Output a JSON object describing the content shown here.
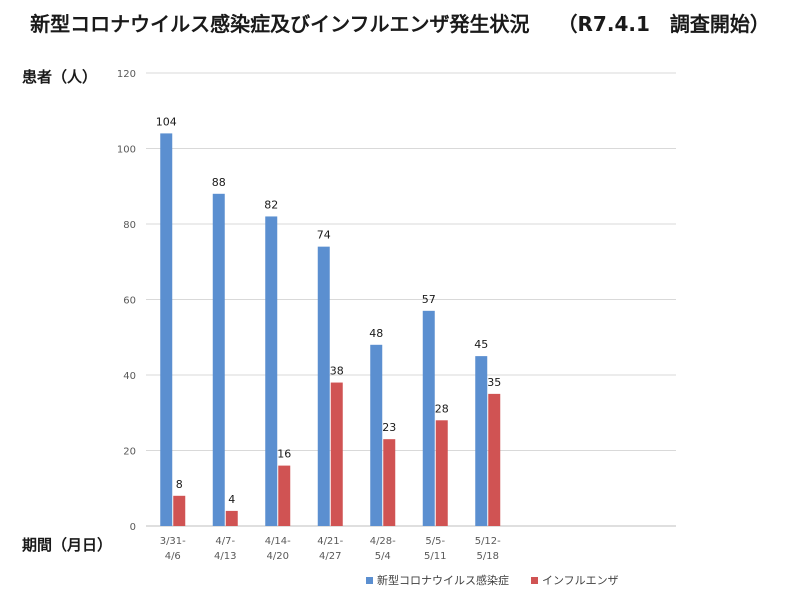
{
  "title": {
    "main": "新型コロナウイルス感染症及びインフルエンザ発生状況",
    "survey": "（R7.4.1　調査開始）"
  },
  "colors": {
    "covid": "#5b8fd0",
    "flu": "#d05353",
    "grid": "#d9d9d9",
    "axis": "#bfbfbf"
  },
  "chart_data": {
    "type": "bar",
    "title": "新型コロナウイルス感染症及びインフルエンザ発生状況",
    "ylabel": "患者（人）",
    "xlabel": "期間（月日）",
    "ylim": [
      0,
      120
    ],
    "yticks": [
      "0",
      "20",
      "40",
      "60",
      "80",
      "100",
      "120"
    ],
    "categories": [
      [
        "3/31-",
        "4/6"
      ],
      [
        "4/7-",
        "4/13"
      ],
      [
        "4/14-",
        "4/20"
      ],
      [
        "4/21-",
        "4/27"
      ],
      [
        "4/28-",
        "5/4"
      ],
      [
        "5/5-",
        "5/11"
      ],
      [
        "5/12-",
        "5/18"
      ]
    ],
    "series": [
      {
        "name": "新型コロナウイルス感染症",
        "values": [
          104,
          88,
          82,
          74,
          48,
          57,
          45
        ]
      },
      {
        "name": "インフルエンザ",
        "values": [
          8,
          4,
          16,
          38,
          23,
          28,
          35
        ]
      }
    ],
    "legend": "bottom",
    "grid": true
  }
}
